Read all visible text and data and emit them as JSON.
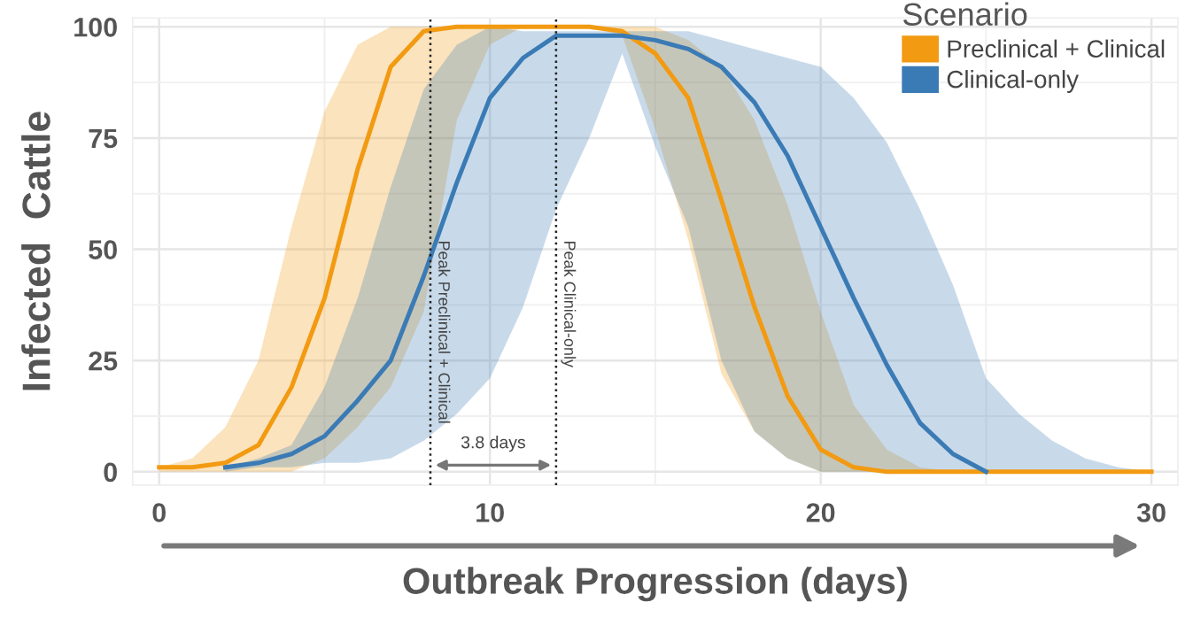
{
  "chart_data": {
    "type": "line",
    "xlabel": "Outbreak Progression (days)",
    "ylabel": "Infected  Cattle",
    "legend_title": "Scenario",
    "x": [
      0,
      1,
      2,
      3,
      4,
      5,
      6,
      7,
      8,
      9,
      10,
      11,
      12,
      13,
      14,
      15,
      16,
      17,
      18,
      19,
      20,
      21,
      22,
      23,
      24,
      25,
      26,
      27,
      28,
      29,
      30
    ],
    "series": [
      {
        "name": "Preclinical + Clinical",
        "color": "#f29a11",
        "values": [
          1,
          1,
          2,
          6,
          19,
          39,
          68,
          91,
          99,
          100,
          100,
          100,
          100,
          100,
          99,
          94,
          84,
          61,
          37,
          17,
          5,
          1,
          0,
          0,
          0,
          0,
          0,
          0,
          0,
          0,
          0
        ],
        "lower": [
          0,
          0,
          0,
          0,
          0,
          3,
          10,
          19,
          36,
          79,
          96,
          100,
          100,
          100,
          98,
          77,
          52,
          22,
          9,
          3,
          0,
          0,
          0,
          0,
          0,
          0,
          0,
          0,
          0,
          0,
          0
        ],
        "upper": [
          1,
          3,
          10,
          25,
          55,
          81,
          96,
          100,
          100,
          100,
          100,
          100,
          100,
          100,
          100,
          100,
          97,
          91,
          79,
          60,
          36,
          15,
          5,
          1,
          0,
          0,
          0,
          0,
          0,
          0,
          0
        ]
      },
      {
        "name": "Clinical-only",
        "color": "#3b7bb5",
        "values": [
          null,
          null,
          1,
          2,
          4,
          8,
          16,
          25,
          44,
          65,
          84,
          93,
          98,
          98,
          98,
          97,
          95,
          91,
          83,
          71,
          55,
          39,
          24,
          11,
          4,
          0,
          null,
          null,
          null,
          null,
          null
        ],
        "lower": [
          null,
          null,
          0,
          1,
          1,
          2,
          2,
          3,
          7,
          13,
          21,
          37,
          59,
          75,
          94,
          73,
          55,
          25,
          9,
          3,
          0,
          0,
          0,
          0,
          0,
          0,
          0,
          0,
          0,
          0,
          0
        ],
        "upper": [
          null,
          null,
          1,
          3,
          6,
          19,
          39,
          64,
          86,
          96,
          100,
          99,
          99,
          99,
          99,
          99,
          99,
          97,
          95,
          93,
          91,
          84,
          74,
          59,
          42,
          21,
          13,
          7,
          3,
          1,
          0
        ]
      }
    ],
    "xlim": [
      -0.8,
      30.8
    ],
    "xticks": [
      0,
      10,
      20,
      30
    ],
    "ylim": [
      -3,
      102
    ],
    "yticks": [
      0,
      25,
      50,
      75,
      100
    ],
    "ref_lines": [
      {
        "axis": "x",
        "value": 8.2,
        "label": "Peak Preclinical + Clinical",
        "color": "#222222",
        "line_style": "dotted"
      },
      {
        "axis": "x",
        "value": 12.0,
        "label": "Peak Clinical-only",
        "color": "#222222",
        "line_style": "dotted"
      }
    ],
    "annotations": [
      "3.8 days"
    ],
    "grid": true,
    "legend": "top right",
    "marker": "none",
    "line_style": "solid"
  }
}
